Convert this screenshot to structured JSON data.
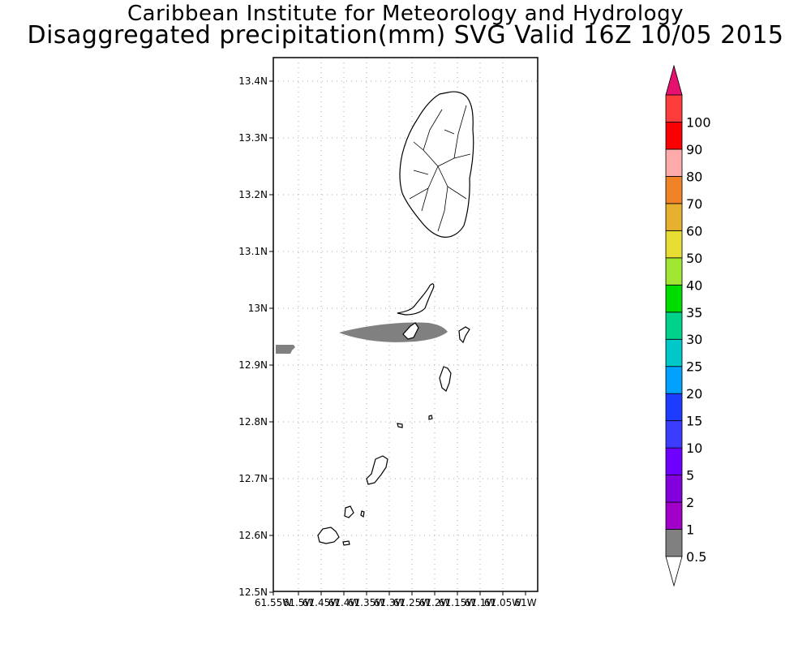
{
  "header": {
    "title": "Caribbean Institute for Meteorology and Hydrology",
    "subtitle": "Disaggregated precipitation(mm) SVG Valid 16Z 10/05 2015"
  },
  "map": {
    "lat_labels": [
      "13.4N",
      "13.3N",
      "13.2N",
      "13.1N",
      "13N",
      "12.9N",
      "12.8N",
      "12.7N",
      "12.6N",
      "12.5N"
    ],
    "lon_labels": [
      "61.55W",
      "61.5W",
      "61.45W",
      "61.4W",
      "61.35W",
      "61.3W",
      "61.25W",
      "61.2W",
      "61.15W",
      "61.1W",
      "61.05W",
      "61W"
    ],
    "lat_range": [
      12.5,
      13.44
    ],
    "lon_range": [
      -61.55,
      -60.98
    ],
    "precip_areas": [
      {
        "label": "0.5-1 mm band",
        "color": "#808080",
        "center_lon": -61.29,
        "center_lat": 12.957
      },
      {
        "label": "0.5-1 mm patch west",
        "color": "#808080",
        "center_lon": -61.545,
        "center_lat": 12.929
      }
    ]
  },
  "legend": {
    "colors": [
      "#808080",
      "#a000c8",
      "#8200dc",
      "#6e00ff",
      "#3c3cff",
      "#1e3cff",
      "#00a0ff",
      "#00c8c8",
      "#00d28c",
      "#00dc00",
      "#a0e632",
      "#e6dc32",
      "#e6af2d",
      "#f08228",
      "#ffaaaa",
      "#fa0000",
      "#ff3c3c",
      "#e6106e"
    ],
    "labels": [
      "0.5",
      "1",
      "2",
      "5",
      "10",
      "15",
      "20",
      "25",
      "30",
      "35",
      "40",
      "50",
      "60",
      "70",
      "80",
      "90",
      "100"
    ],
    "over_color": "#e6106e",
    "under_color": "#ffffff"
  }
}
